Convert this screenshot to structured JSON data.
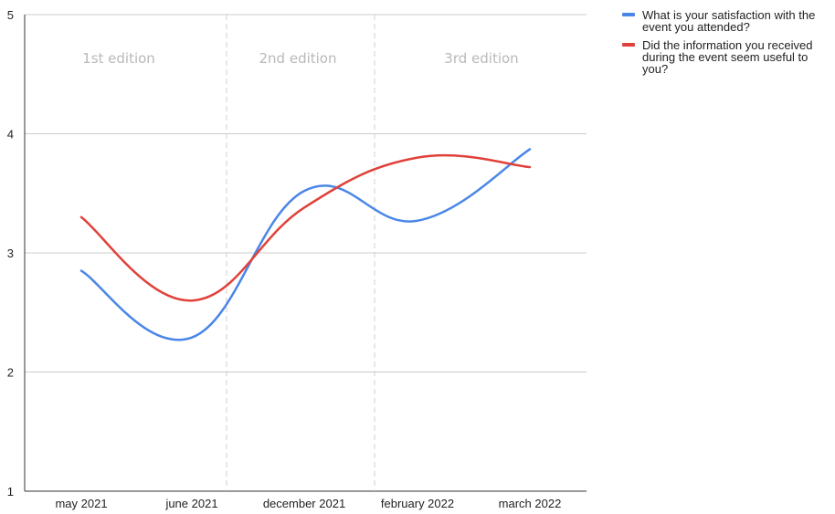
{
  "chart_data": {
    "type": "line",
    "categories": [
      "may 2021",
      "june 2021",
      "december 2021",
      "february 2022",
      "march 2022"
    ],
    "series": [
      {
        "name": "What is your satisfaction with the event you attended?",
        "color": "#4a86e8",
        "values": [
          2.85,
          2.29,
          3.52,
          3.27,
          3.87
        ]
      },
      {
        "name": "Did the information you received during the event seem useful to you?",
        "color": "#e0413a",
        "values": [
          3.3,
          2.6,
          3.38,
          3.8,
          3.72
        ]
      }
    ],
    "ylim": [
      1,
      5
    ],
    "yticks": [
      "1",
      "2",
      "3",
      "4",
      "5"
    ],
    "grid": true,
    "legend_position": "right",
    "annotations": [
      {
        "text": "1st edition",
        "category_span": [
          0,
          1
        ]
      },
      {
        "text": "2nd edition",
        "category_span": [
          1,
          3
        ]
      },
      {
        "text": "3rd edition",
        "category_span": [
          3,
          4
        ]
      }
    ]
  }
}
